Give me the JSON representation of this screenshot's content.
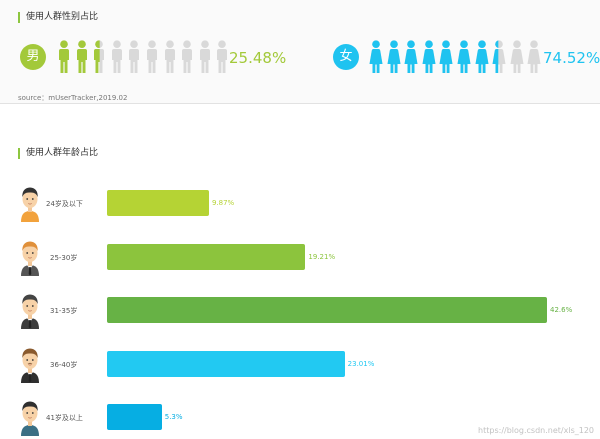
{
  "gender_section": {
    "title": "使用人群性别占比",
    "male": {
      "label": "男",
      "percent": "25.48%",
      "value": 25.48,
      "color": "#a3c93a",
      "gray": "#d9d9d9"
    },
    "female": {
      "label": "女",
      "percent": "74.52%",
      "value": 74.52,
      "color": "#1fc3f0",
      "gray": "#d9d9d9"
    },
    "icons_per_group": 10,
    "source": "source：mUserTracker,2019.02"
  },
  "age_section": {
    "title": "使用人群年龄占比"
  },
  "chart_data": {
    "type": "bar",
    "orientation": "horizontal",
    "categories": [
      "24岁及以下",
      "25-30岁",
      "31-35岁",
      "36-40岁",
      "41岁及以上"
    ],
    "values": [
      9.87,
      19.21,
      42.6,
      23.01,
      5.3
    ],
    "value_labels": [
      "9.87%",
      "19.21%",
      "42.6%",
      "23.01%",
      "5.3%"
    ],
    "colors": [
      "#b5d334",
      "#8cc43d",
      "#67b245",
      "#22c9f2",
      "#06aee3"
    ],
    "xlim": [
      0,
      42.6
    ],
    "grid": false
  },
  "watermark": "https://blog.csdn.net/xls_120"
}
